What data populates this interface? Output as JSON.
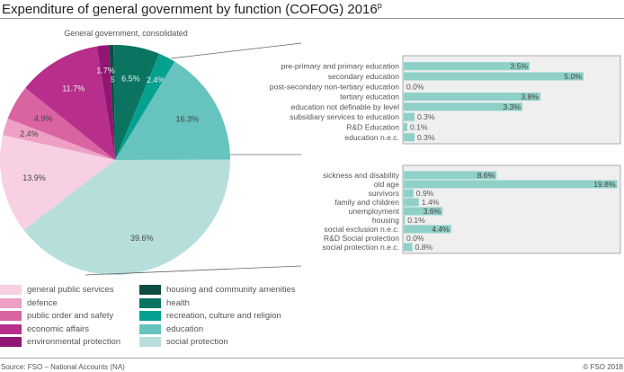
{
  "title": "Expenditure of general government by function (COFOG) 2016",
  "title_superscript": "p",
  "source": "Source: FSO – National Accounts (NA)",
  "copyright": "© FSO 2018",
  "chart_data": [
    {
      "type": "pie",
      "subtitle": "General government, consolidated",
      "unit": "%",
      "slices": [
        {
          "name": "housing and community amenities",
          "value": 0.6,
          "color": "#0e4b40"
        },
        {
          "name": "health",
          "value": 6.5,
          "color": "#0a7461"
        },
        {
          "name": "recreation, culture and religion",
          "value": 2.4,
          "color": "#06a08f"
        },
        {
          "name": "education",
          "value": 16.3,
          "color": "#66c3bd"
        },
        {
          "name": "social protection",
          "value": 39.6,
          "color": "#b6dfdc"
        },
        {
          "name": "general public services",
          "value": 13.9,
          "color": "#f8d0e3"
        },
        {
          "name": "defence",
          "value": 2.4,
          "color": "#ee9fc5"
        },
        {
          "name": "public order and safety",
          "value": 4.9,
          "color": "#da63a2"
        },
        {
          "name": "economic affairs",
          "value": 11.7,
          "color": "#b72f8b"
        },
        {
          "name": "environmental protection",
          "value": 1.7,
          "color": "#901673"
        }
      ],
      "legend_order": [
        "general public services",
        "defence",
        "public order and safety",
        "economic affairs",
        "environmental protection",
        "housing and community amenities",
        "health",
        "recreation, culture and religion",
        "education",
        "social protection"
      ],
      "legend_placement": "bottom-left"
    },
    {
      "type": "bar",
      "orientation": "horizontal",
      "breakdown_of": "education",
      "bar_color": "#8fd0c8",
      "xlim": [
        0,
        6
      ],
      "categories": [
        "pre-primary and primary education",
        "secondary education",
        "post-secondary non-tertiary education",
        "tertiary education",
        "education not definable by level",
        "subsidiary services to education",
        "R&D Education",
        "education n.e.c."
      ],
      "values": [
        3.5,
        5.0,
        0.0,
        3.8,
        3.3,
        0.3,
        0.1,
        0.3
      ]
    },
    {
      "type": "bar",
      "orientation": "horizontal",
      "breakdown_of": "social protection",
      "bar_color": "#8fd0c8",
      "xlim": [
        0,
        20
      ],
      "categories": [
        "sickness and disability",
        "old age",
        "survivors",
        "family and children",
        "unemployment",
        "housing",
        "social exclusion n.e.c.",
        "R&D Social protection",
        "social protection n.e.c."
      ],
      "values": [
        8.6,
        19.8,
        0.9,
        1.4,
        3.6,
        0.1,
        4.4,
        0.0,
        0.8
      ]
    }
  ]
}
